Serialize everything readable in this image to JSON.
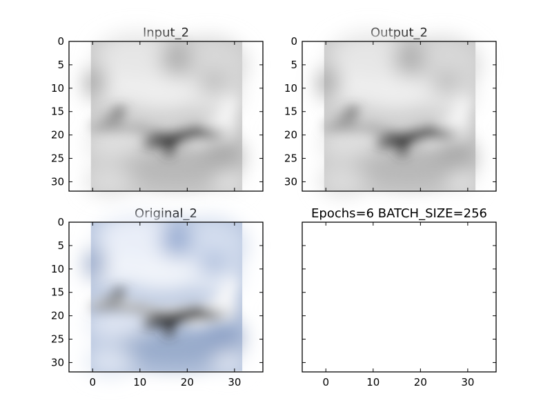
{
  "chart_data": [
    {
      "type": "image",
      "title": "Input_2",
      "image": "grayscale 32x32 airplane in clouds",
      "xlim": [
        -5,
        36
      ],
      "ylim": [
        32,
        0
      ],
      "xticks": [
        0,
        10,
        20,
        30
      ],
      "yticks": [
        0,
        5,
        10,
        15,
        20,
        25,
        30
      ],
      "show_xtick_labels": false,
      "show_ytick_labels": true
    },
    {
      "type": "image",
      "title": "Output_2",
      "image": "grayscale 32x32 airplane in clouds",
      "xlim": [
        -5,
        36
      ],
      "ylim": [
        32,
        0
      ],
      "xticks": [
        0,
        10,
        20,
        30
      ],
      "yticks": [
        0,
        5,
        10,
        15,
        20,
        25,
        30
      ],
      "show_xtick_labels": false,
      "show_ytick_labels": true
    },
    {
      "type": "image",
      "title": "Original_2",
      "image": "color 32x32 airplane in blue cloudy sky",
      "xlim": [
        -5,
        36
      ],
      "ylim": [
        32,
        0
      ],
      "xticks": [
        0,
        10,
        20,
        30
      ],
      "yticks": [
        0,
        5,
        10,
        15,
        20,
        25,
        30
      ],
      "show_xtick_labels": true,
      "show_ytick_labels": true
    },
    {
      "type": "image",
      "title": "Epochs=6 BATCH_SIZE=256",
      "image": "",
      "xlim": [
        -5,
        36
      ],
      "ylim": [
        32,
        0
      ],
      "xticks": [
        0,
        10,
        20,
        30
      ],
      "yticks": [
        0,
        5,
        10,
        15,
        20,
        25,
        30
      ],
      "show_xtick_labels": true,
      "show_ytick_labels": false
    }
  ]
}
